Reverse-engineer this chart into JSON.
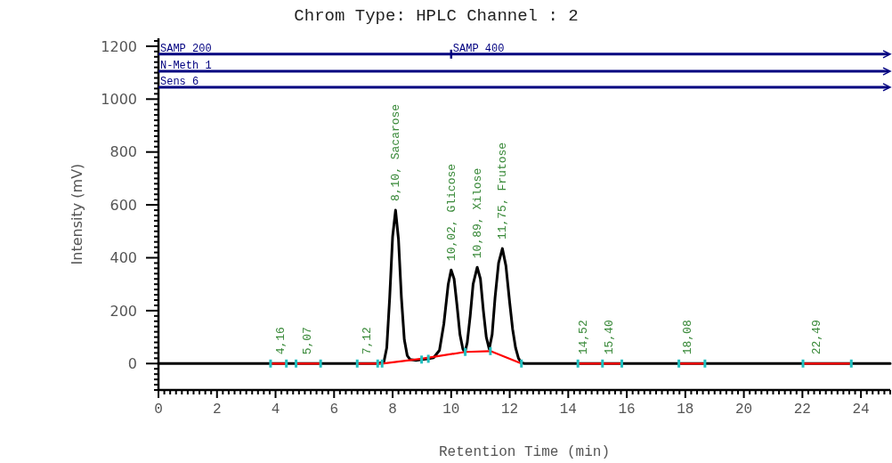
{
  "chart_data": {
    "type": "line",
    "title": "Chrom Type: HPLC Channel : 2",
    "xlabel": "Retention Time (min)",
    "ylabel": "Intensity (mV)",
    "xlim": [
      0,
      25
    ],
    "ylim": [
      -100,
      1230
    ],
    "xticks": [
      0,
      {
        "value": 0.2,
        "label": null
      },
      {
        "value": 0.4,
        "label": null
      },
      {
        "value": 0.6,
        "label": null
      },
      {
        "value": 0.8,
        "label": null
      },
      {
        "value": 1,
        "label": null
      },
      {
        "value": 1.2,
        "label": null
      },
      {
        "value": 1.4,
        "label": null
      },
      {
        "value": 1.6,
        "label": null
      },
      {
        "value": 1.8,
        "label": null
      },
      2,
      {
        "value": 2.2,
        "label": null
      },
      {
        "value": 2.4,
        "label": null
      },
      {
        "value": 2.6,
        "label": null
      },
      {
        "value": 2.8,
        "label": null
      },
      {
        "value": 3,
        "label": null
      },
      {
        "value": 3.2,
        "label": null
      },
      {
        "value": 3.4,
        "label": null
      },
      {
        "value": 3.6,
        "label": null
      },
      {
        "value": 3.8,
        "label": null
      },
      4,
      {
        "value": 4.2,
        "label": null
      },
      {
        "value": 4.4,
        "label": null
      },
      {
        "value": 4.6,
        "label": null
      },
      {
        "value": 4.8,
        "label": null
      },
      {
        "value": 5,
        "label": null
      },
      {
        "value": 5.2,
        "label": null
      },
      {
        "value": 5.4,
        "label": null
      },
      {
        "value": 5.6,
        "label": null
      },
      {
        "value": 5.8,
        "label": null
      },
      6,
      {
        "value": 6.2,
        "label": null
      },
      {
        "value": 6.4,
        "label": null
      },
      {
        "value": 6.6,
        "label": null
      },
      {
        "value": 6.8,
        "label": null
      },
      {
        "value": 7,
        "label": null
      },
      {
        "value": 7.2,
        "label": null
      },
      {
        "value": 7.4,
        "label": null
      },
      {
        "value": 7.6,
        "label": null
      },
      {
        "value": 7.8,
        "label": null
      },
      8,
      {
        "value": 8.2,
        "label": null
      },
      {
        "value": 8.4,
        "label": null
      },
      {
        "value": 8.6,
        "label": null
      },
      {
        "value": 8.8,
        "label": null
      },
      {
        "value": 9,
        "label": null
      },
      {
        "value": 9.2,
        "label": null
      },
      {
        "value": 9.4,
        "label": null
      },
      {
        "value": 9.6,
        "label": null
      },
      {
        "value": 9.8,
        "label": null
      },
      10,
      {
        "value": 10.2,
        "label": null
      },
      {
        "value": 10.4,
        "label": null
      },
      {
        "value": 10.6,
        "label": null
      },
      {
        "value": 10.8,
        "label": null
      },
      {
        "value": 11,
        "label": null
      },
      {
        "value": 11.2,
        "label": null
      },
      {
        "value": 11.4,
        "label": null
      },
      {
        "value": 11.6,
        "label": null
      },
      {
        "value": 11.8,
        "label": null
      },
      12,
      {
        "value": 12.2,
        "label": null
      },
      {
        "value": 12.4,
        "label": null
      },
      {
        "value": 12.6,
        "label": null
      },
      {
        "value": 12.8,
        "label": null
      },
      {
        "value": 13,
        "label": null
      },
      {
        "value": 13.2,
        "label": null
      },
      {
        "value": 13.4,
        "label": null
      },
      {
        "value": 13.6,
        "label": null
      },
      {
        "value": 13.8,
        "label": null
      },
      14,
      {
        "value": 14.2,
        "label": null
      },
      {
        "value": 14.4,
        "label": null
      },
      {
        "value": 14.6,
        "label": null
      },
      {
        "value": 14.8,
        "label": null
      },
      {
        "value": 15,
        "label": null
      },
      {
        "value": 15.2,
        "label": null
      },
      {
        "value": 15.4,
        "label": null
      },
      {
        "value": 15.6,
        "label": null
      },
      {
        "value": 15.8,
        "label": null
      },
      16,
      {
        "value": 16.2,
        "label": null
      },
      {
        "value": 16.4,
        "label": null
      },
      {
        "value": 16.6,
        "label": null
      },
      {
        "value": 16.8,
        "label": null
      },
      {
        "value": 17,
        "label": null
      },
      {
        "value": 17.2,
        "label": null
      },
      {
        "value": 17.4,
        "label": null
      },
      {
        "value": 17.6,
        "label": null
      },
      {
        "value": 17.8,
        "label": null
      },
      18,
      {
        "value": 18.2,
        "label": null
      },
      {
        "value": 18.4,
        "label": null
      },
      {
        "value": 18.6,
        "label": null
      },
      {
        "value": 18.8,
        "label": null
      },
      {
        "value": 19,
        "label": null
      },
      {
        "value": 19.2,
        "label": null
      },
      {
        "value": 19.4,
        "label": null
      },
      {
        "value": 19.6,
        "label": null
      },
      {
        "value": 19.8,
        "label": null
      },
      20,
      {
        "value": 20.2,
        "label": null
      },
      {
        "value": 20.4,
        "label": null
      },
      {
        "value": 20.6,
        "label": null
      },
      {
        "value": 20.8,
        "label": null
      },
      {
        "value": 21,
        "label": null
      },
      {
        "value": 21.2,
        "label": null
      },
      {
        "value": 21.4,
        "label": null
      },
      {
        "value": 21.6,
        "label": null
      },
      {
        "value": 21.8,
        "label": null
      },
      22,
      {
        "value": 22.2,
        "label": null
      },
      {
        "value": 22.4,
        "label": null
      },
      {
        "value": 22.6,
        "label": null
      },
      {
        "value": 22.8,
        "label": null
      },
      {
        "value": 23,
        "label": null
      },
      {
        "value": 23.2,
        "label": null
      },
      {
        "value": 23.4,
        "label": null
      },
      {
        "value": 23.6,
        "label": null
      },
      {
        "value": 23.8,
        "label": null
      },
      24,
      {
        "value": 24.2,
        "label": null
      },
      {
        "value": 24.4,
        "label": null
      },
      {
        "value": 24.6,
        "label": null
      },
      {
        "value": 24.8,
        "label": null
      },
      {
        "value": 25,
        "label": null
      }
    ],
    "yticks": [
      {
        "value": -100,
        "label": null
      },
      {
        "value": -80,
        "label": null
      },
      {
        "value": -60,
        "label": null
      },
      {
        "value": -40,
        "label": null
      },
      {
        "value": -20,
        "label": null
      },
      0,
      {
        "value": 20,
        "label": null
      },
      {
        "value": 40,
        "label": null
      },
      {
        "value": 60,
        "label": null
      },
      {
        "value": 80,
        "label": null
      },
      {
        "value": 100,
        "label": null
      },
      {
        "value": 120,
        "label": null
      },
      {
        "value": 140,
        "label": null
      },
      {
        "value": 160,
        "label": null
      },
      {
        "value": 180,
        "label": null
      },
      200,
      {
        "value": 220,
        "label": null
      },
      {
        "value": 240,
        "label": null
      },
      {
        "value": 260,
        "label": null
      },
      {
        "value": 280,
        "label": null
      },
      {
        "value": 300,
        "label": null
      },
      {
        "value": 320,
        "label": null
      },
      {
        "value": 340,
        "label": null
      },
      {
        "value": 360,
        "label": null
      },
      {
        "value": 380,
        "label": null
      },
      400,
      {
        "value": 420,
        "label": null
      },
      {
        "value": 440,
        "label": null
      },
      {
        "value": 460,
        "label": null
      },
      {
        "value": 480,
        "label": null
      },
      {
        "value": 500,
        "label": null
      },
      {
        "value": 520,
        "label": null
      },
      {
        "value": 540,
        "label": null
      },
      {
        "value": 560,
        "label": null
      },
      {
        "value": 580,
        "label": null
      },
      600,
      {
        "value": 620,
        "label": null
      },
      {
        "value": 640,
        "label": null
      },
      {
        "value": 660,
        "label": null
      },
      {
        "value": 680,
        "label": null
      },
      {
        "value": 700,
        "label": null
      },
      {
        "value": 720,
        "label": null
      },
      {
        "value": 740,
        "label": null
      },
      {
        "value": 760,
        "label": null
      },
      {
        "value": 780,
        "label": null
      },
      800,
      {
        "value": 820,
        "label": null
      },
      {
        "value": 840,
        "label": null
      },
      {
        "value": 860,
        "label": null
      },
      {
        "value": 880,
        "label": null
      },
      {
        "value": 900,
        "label": null
      },
      {
        "value": 920,
        "label": null
      },
      {
        "value": 940,
        "label": null
      },
      {
        "value": 960,
        "label": null
      },
      {
        "value": 980,
        "label": null
      },
      1000,
      {
        "value": 1020,
        "label": null
      },
      {
        "value": 1040,
        "label": null
      },
      {
        "value": 1060,
        "label": null
      },
      {
        "value": 1080,
        "label": null
      },
      {
        "value": 1100,
        "label": null
      },
      {
        "value": 1120,
        "label": null
      },
      {
        "value": 1140,
        "label": null
      },
      {
        "value": 1160,
        "label": null
      },
      {
        "value": 1180,
        "label": null
      },
      1200,
      {
        "value": 1220,
        "label": null
      }
    ],
    "line_style": "solid",
    "series": [
      {
        "color": "#000000",
        "x": [
          0,
          7.5,
          7.7,
          7.8,
          7.9,
          8.0,
          8.1,
          8.2,
          8.3,
          8.4,
          8.5,
          8.6,
          8.8,
          9.0,
          9.2,
          9.4,
          9.6,
          9.75,
          9.9,
          10.0,
          10.1,
          10.2,
          10.3,
          10.4,
          10.47,
          10.55,
          10.65,
          10.75,
          10.89,
          11.0,
          11.1,
          11.2,
          11.3,
          11.4,
          11.5,
          11.62,
          11.75,
          11.87,
          12.0,
          12.1,
          12.2,
          12.3,
          12.4,
          12.5,
          25
        ],
        "values": [
          0,
          0,
          5,
          60,
          250,
          480,
          580,
          470,
          250,
          90,
          30,
          15,
          12,
          15,
          18,
          22,
          50,
          150,
          300,
          354,
          320,
          220,
          110,
          55,
          42,
          80,
          180,
          300,
          364,
          320,
          200,
          100,
          55,
          110,
          250,
          380,
          435,
          370,
          230,
          130,
          60,
          20,
          3,
          0,
          0
        ]
      },
      {
        "color": "#ff0000",
        "x": [
          3.83,
          4.37,
          4.5,
          4.7,
          5.54,
          6.0,
          6.79,
          7.64,
          9.0,
          10.48,
          11.34,
          12.4,
          13.0,
          14.33,
          15.17,
          15.83,
          16.5,
          17.78,
          18.67,
          20,
          22.02,
          23.67
        ],
        "values": [
          0,
          0,
          null,
          0,
          0,
          null,
          0,
          0,
          18,
          44,
          47,
          0,
          null,
          0,
          0,
          0,
          null,
          0,
          0,
          null,
          0,
          0
        ]
      },
      {
        "type": "scatter",
        "color": "#20c0c0",
        "x": [
          3.83,
          4.37,
          4.7,
          5.54,
          6.79,
          7.49,
          7.64,
          8.99,
          9.22,
          10.48,
          11.34,
          12.4,
          14.33,
          15.17,
          15.83,
          17.78,
          18.67,
          22.02,
          23.67
        ],
        "values": [
          0,
          0,
          0,
          0,
          0,
          0,
          0,
          15,
          18,
          44,
          47,
          0,
          0,
          0,
          0,
          0,
          0,
          0,
          0
        ]
      }
    ],
    "ref_lines": [
      {
        "axis": "y",
        "value": 1170,
        "label": "SAMP 200",
        "color": "#000080"
      },
      {
        "axis": "y",
        "value": 1105,
        "label": "N-Meth 1",
        "color": "#000080"
      },
      {
        "axis": "y",
        "value": 1045,
        "label": "Sens 6",
        "color": "#000080"
      }
    ],
    "annotations": [
      {
        "text": "SAMP 400",
        "x": 10,
        "y": 1170
      },
      {
        "text": "4,16",
        "x": 4.16,
        "y": 0
      },
      {
        "text": "5,07",
        "x": 5.07,
        "y": 0
      },
      {
        "text": "7,12",
        "x": 7.12,
        "y": 0
      },
      {
        "text": "8,10, Sacarose",
        "x": 8.1,
        "y": 580
      },
      {
        "text": "10,02, Glicose",
        "x": 10.02,
        "y": 354
      },
      {
        "text": "10,89, Xilose",
        "x": 10.89,
        "y": 364
      },
      {
        "text": "11,75, Frutose",
        "x": 11.75,
        "y": 435
      },
      {
        "text": "14,52",
        "x": 14.52,
        "y": 0
      },
      {
        "text": "15,40",
        "x": 15.4,
        "y": 0
      },
      {
        "text": "18,08",
        "x": 18.08,
        "y": 0
      },
      {
        "text": "22,49",
        "x": 22.49,
        "y": 0
      }
    ]
  }
}
